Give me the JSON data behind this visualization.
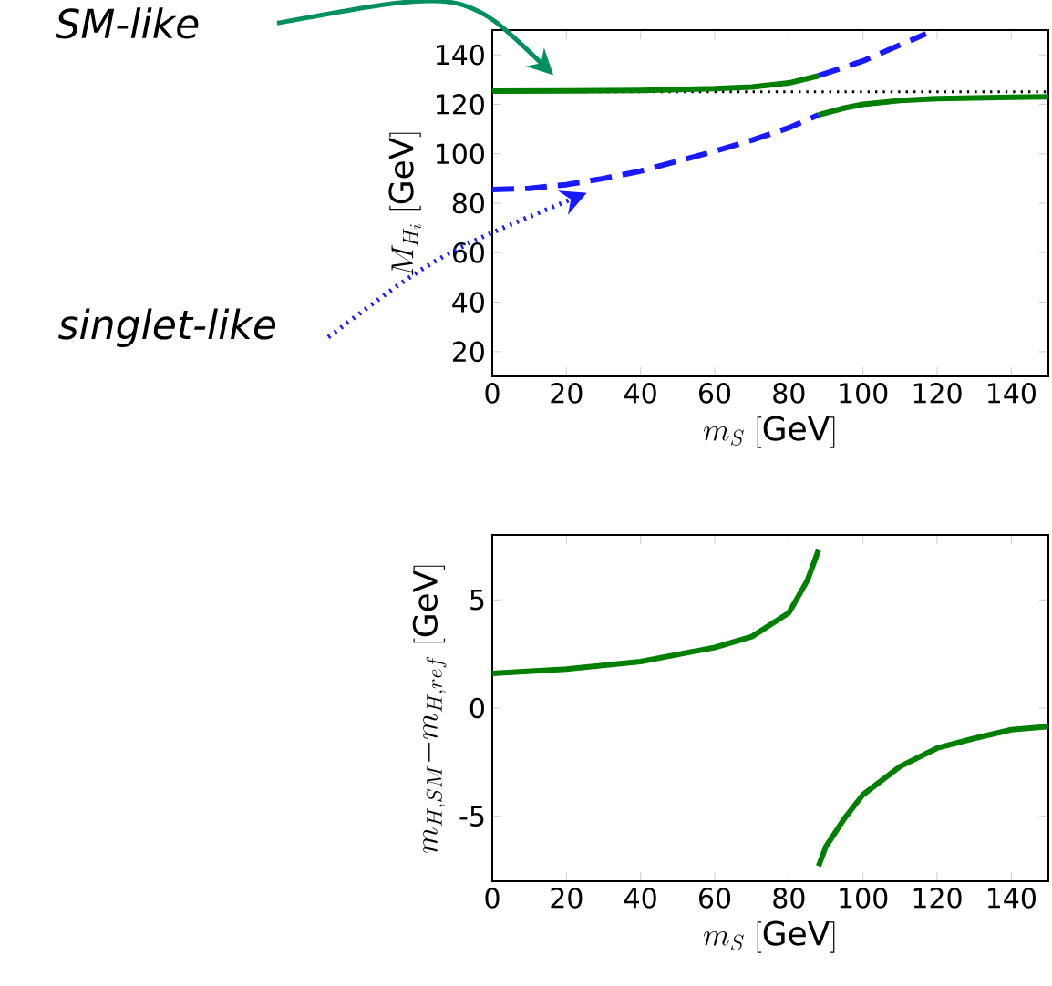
{
  "chart_data": [
    {
      "type": "line",
      "xlabel": "m_S\\;[\\mathrm{GeV}]",
      "ylabel": "M_{H_i}\\;[\\mathrm{GeV}]",
      "xlim": [
        0,
        150
      ],
      "ylim": [
        10,
        150
      ],
      "xticks": [
        0,
        20,
        40,
        60,
        80,
        100,
        120,
        140
      ],
      "yticks": [
        20,
        40,
        60,
        80,
        100,
        120,
        140
      ],
      "grid": false,
      "series": [
        {
          "color": "#007f00",
          "line_style": "solid",
          "x": [
            0,
            20,
            40,
            60,
            70,
            80,
            88
          ],
          "values": [
            125.3,
            125.4,
            125.6,
            126.3,
            127,
            128.6,
            131.5
          ]
        },
        {
          "color": "#1a1aff",
          "line_style": "dashed",
          "x": [
            88,
            100,
            110,
            117
          ],
          "values": [
            131.5,
            137.5,
            144,
            148.5
          ]
        },
        {
          "color": "#1a1aff",
          "line_style": "dashed",
          "x": [
            0,
            10,
            20,
            30,
            40,
            50,
            60,
            70,
            80,
            88
          ],
          "values": [
            85.5,
            86,
            87.5,
            90,
            93,
            97,
            101,
            105.5,
            110.5,
            115.7
          ]
        },
        {
          "color": "#007f00",
          "line_style": "solid",
          "x": [
            88,
            95,
            100,
            110,
            120,
            140,
            150
          ],
          "values": [
            115.7,
            118.5,
            120,
            121.5,
            122.3,
            122.8,
            123
          ]
        }
      ],
      "ref_lines": [
        {
          "axis": "y",
          "value": 125,
          "color": "#000000",
          "line_style": "dotted"
        }
      ],
      "annotations": [
        "SM-like",
        "singlet-like"
      ]
    },
    {
      "type": "line",
      "xlabel": "m_S\\;[\\mathrm{GeV}]",
      "ylabel": "m_{H,SM}{-}m_{H,ref}\\;[\\mathrm{GeV}]",
      "xlim": [
        0,
        150
      ],
      "ylim": [
        -8,
        8
      ],
      "xticks": [
        0,
        20,
        40,
        60,
        80,
        100,
        120,
        140
      ],
      "yticks": [
        -5,
        0,
        5
      ],
      "grid": false,
      "series": [
        {
          "color": "#007f00",
          "line_style": "solid",
          "x": [
            0,
            20,
            40,
            60,
            70,
            80,
            85,
            88
          ],
          "values": [
            1.6,
            1.8,
            2.15,
            2.8,
            3.3,
            4.4,
            5.9,
            7.3
          ]
        },
        {
          "color": "#007f00",
          "line_style": "solid",
          "x": [
            88,
            90,
            95,
            100,
            110,
            120,
            130,
            140,
            150
          ],
          "values": [
            -7.3,
            -6.4,
            -5.1,
            -4.0,
            -2.7,
            -1.85,
            -1.4,
            -1.0,
            -0.85
          ]
        }
      ]
    }
  ]
}
